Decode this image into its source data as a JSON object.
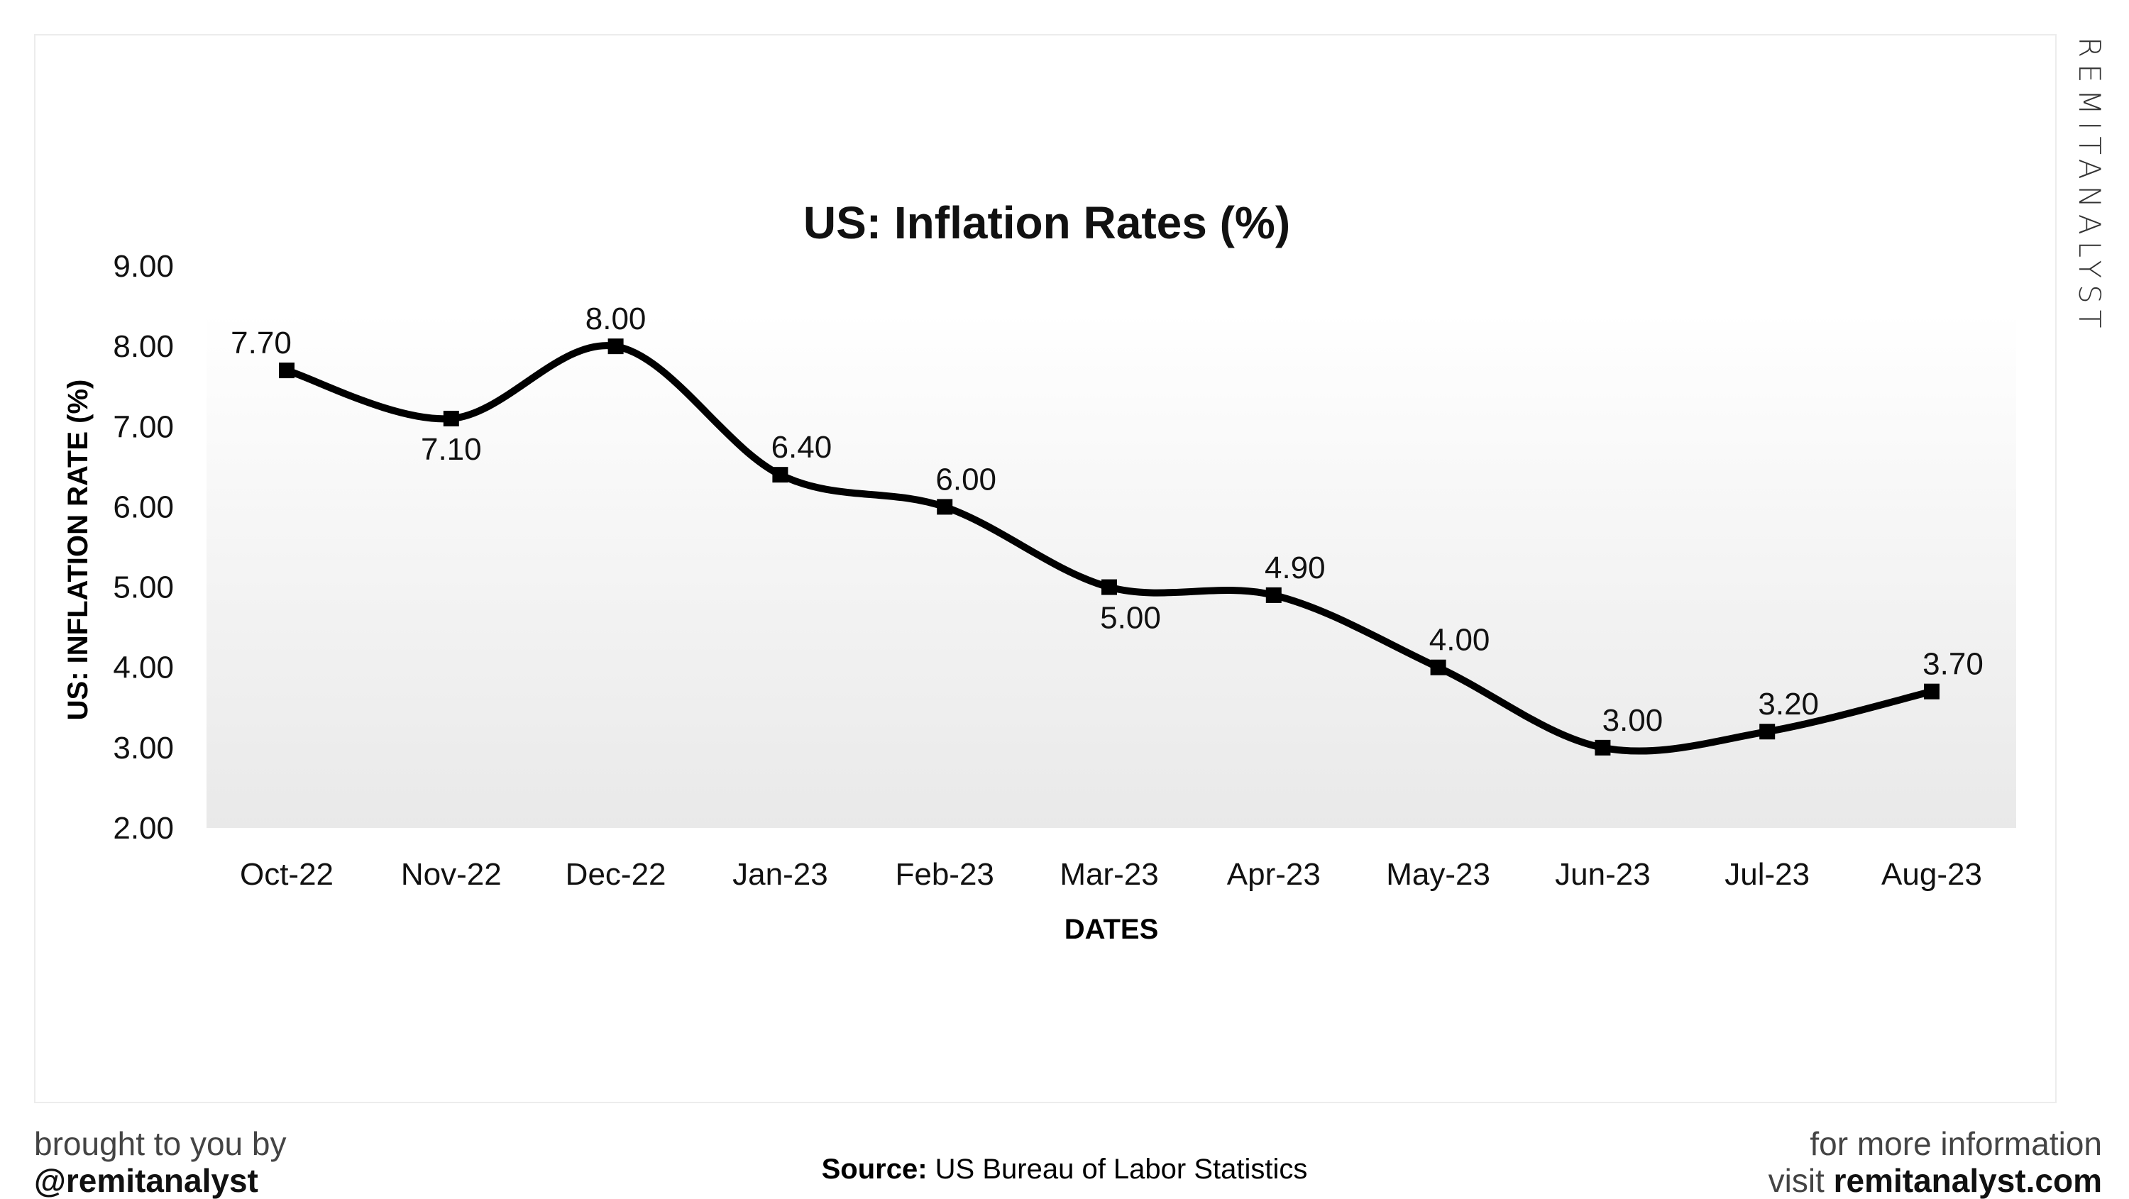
{
  "chart_data": {
    "type": "line",
    "title": "US: Inflation Rates (%)",
    "xlabel": "DATES",
    "ylabel": "US: INFLATION RATE (%)",
    "categories": [
      "Oct-22",
      "Nov-22",
      "Dec-22",
      "Jan-23",
      "Feb-23",
      "Mar-23",
      "Apr-23",
      "May-23",
      "Jun-23",
      "Jul-23",
      "Aug-23"
    ],
    "values": [
      7.7,
      7.1,
      8.0,
      6.4,
      6.0,
      5.0,
      4.9,
      4.0,
      3.0,
      3.2,
      3.7
    ],
    "data_labels": [
      "7.70",
      "7.10",
      "8.00",
      "6.40",
      "6.00",
      "5.00",
      "4.90",
      "4.00",
      "3.00",
      "3.20",
      "3.70"
    ],
    "ylim": [
      2,
      9
    ],
    "yticks": [
      "2.00",
      "3.00",
      "4.00",
      "5.00",
      "6.00",
      "7.00",
      "8.00",
      "9.00"
    ],
    "grid": false,
    "smooth": true,
    "line_color": "#000000",
    "marker": "square"
  },
  "brand": "REMITANALYST",
  "footer": {
    "left_line1": "brought to you by",
    "left_line2": "@remitanalyst",
    "source_label": "Source:",
    "source_text": "US Bureau of Labor Statistics",
    "right_line1": "for more information",
    "right_line2_prefix": "visit",
    "right_line2_site": "remitanalyst.com"
  }
}
